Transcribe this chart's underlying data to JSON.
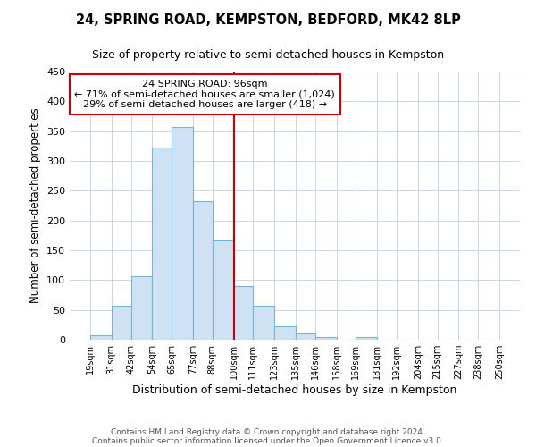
{
  "title": "24, SPRING ROAD, KEMPSTON, BEDFORD, MK42 8LP",
  "subtitle": "Size of property relative to semi-detached houses in Kempston",
  "xlabel": "Distribution of semi-detached houses by size in Kempston",
  "ylabel": "Number of semi-detached properties",
  "bin_labels": [
    "19sqm",
    "31sqm",
    "42sqm",
    "54sqm",
    "65sqm",
    "77sqm",
    "88sqm",
    "100sqm",
    "111sqm",
    "123sqm",
    "135sqm",
    "146sqm",
    "158sqm",
    "169sqm",
    "181sqm",
    "192sqm",
    "204sqm",
    "215sqm",
    "227sqm",
    "238sqm",
    "250sqm"
  ],
  "bar_heights": [
    8,
    57,
    107,
    322,
    357,
    232,
    167,
    90,
    57,
    22,
    10,
    5,
    0,
    4,
    0,
    0,
    0,
    0,
    0,
    0
  ],
  "bar_color": "#cfe2f3",
  "bar_edge_color": "#7ab3d8",
  "vline_color": "#cc0000",
  "annotation_title": "24 SPRING ROAD: 96sqm",
  "annotation_line1": "← 71% of semi-detached houses are smaller (1,024)",
  "annotation_line2": "29% of semi-detached houses are larger (418) →",
  "annotation_box_color": "#ffffff",
  "annotation_box_edge_color": "#cc0000",
  "ylim": [
    0,
    450
  ],
  "yticks": [
    0,
    50,
    100,
    150,
    200,
    250,
    300,
    350,
    400,
    450
  ],
  "footer1": "Contains HM Land Registry data © Crown copyright and database right 2024.",
  "footer2": "Contains public sector information licensed under the Open Government Licence v3.0.",
  "background_color": "#ffffff",
  "grid_color": "#c8d8e8",
  "bin_edges": [
    19,
    31,
    42,
    54,
    65,
    77,
    88,
    100,
    111,
    123,
    135,
    146,
    158,
    169,
    181,
    192,
    204,
    215,
    227,
    238,
    250
  ]
}
